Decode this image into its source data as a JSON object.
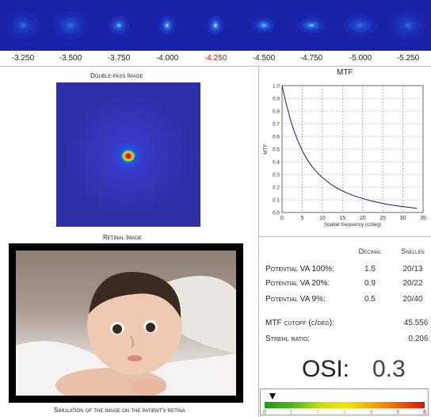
{
  "focus_series": {
    "labels": [
      "-3.250",
      "-3.500",
      "-3.750",
      "-4.000",
      "-4.250",
      "-4.500",
      "-4.750",
      "-5.000",
      "-5.250"
    ],
    "active_index": 4,
    "active_color": "#e60000",
    "strip_color": "#1a23a8"
  },
  "double_pass": {
    "title": "Double-pass Image"
  },
  "retinal": {
    "title": "Retinal Image",
    "caption": "Simulation of the image on the patient's retina"
  },
  "mtf": {
    "title": "MTF"
  },
  "chart_data": {
    "type": "line",
    "title": "MTF",
    "xlabel": "Spatial frequency (c/deg)",
    "ylabel": "MTF",
    "xlim": [
      0,
      35
    ],
    "ylim": [
      0,
      1.0
    ],
    "xticks": [
      "0",
      "5",
      "10",
      "15",
      "20",
      "25",
      "30",
      "35"
    ],
    "yticks": [
      "0.0",
      "0.1",
      "0.2",
      "0.3",
      "0.4",
      "0.5",
      "0.6",
      "0.7",
      "0.8",
      "0.9",
      "1.0"
    ],
    "grid": true,
    "series": [
      {
        "color": "#1a1a7a",
        "x": [
          0,
          1,
          2,
          3,
          4,
          5,
          6,
          7,
          8,
          9,
          10,
          12,
          14,
          16,
          18,
          20,
          22,
          24,
          26,
          28,
          30,
          32,
          33.5
        ],
        "y": [
          1.0,
          0.86,
          0.74,
          0.64,
          0.56,
          0.49,
          0.43,
          0.38,
          0.34,
          0.305,
          0.275,
          0.225,
          0.185,
          0.155,
          0.13,
          0.11,
          0.092,
          0.078,
          0.065,
          0.055,
          0.046,
          0.038,
          0.033
        ]
      }
    ]
  },
  "va_table": {
    "headers": {
      "decimal": "Decimal",
      "snellen": "Snellen"
    },
    "rows": [
      {
        "label": "Potential VA 100%:",
        "decimal": "1.5",
        "snellen": "20/13"
      },
      {
        "label": "Potential VA 20%:",
        "decimal": "0.9",
        "snellen": "20/22"
      },
      {
        "label": "Potential VA 9%:",
        "decimal": "0.5",
        "snellen": "20/40"
      }
    ]
  },
  "metrics": {
    "mtf_cutoff_label": "MTF cutoff (c/deg):",
    "mtf_cutoff_value": "45.556",
    "strehl_label": "Strehl ratio:",
    "strehl_value": "0.206"
  },
  "osi": {
    "label": "OSI:",
    "value": "0.3"
  },
  "osi_scale": {
    "ticks": [
      "0",
      "1",
      "2",
      "3",
      "4",
      "5",
      "6"
    ],
    "tick_colors": [
      "#1a9a1a",
      "#4cb81a",
      "#b8d400",
      "#e8c000",
      "#f08a00",
      "#e84000",
      "#d80000"
    ],
    "pointer_value": 0.3,
    "min": 0,
    "max": 6
  }
}
